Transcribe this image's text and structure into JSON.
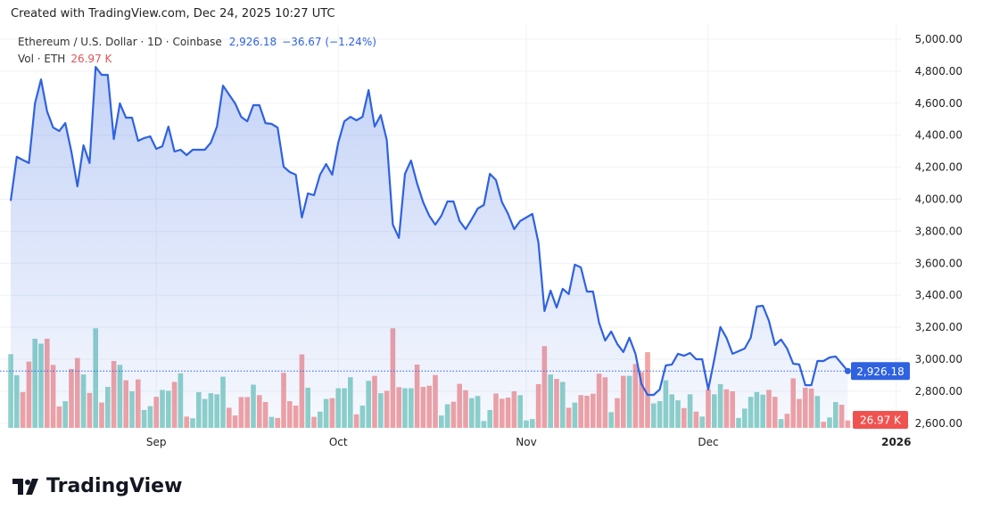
{
  "credit": "Created with TradingView.com, Dec 24, 2025 10:27 UTC",
  "legend": {
    "symbol": "Ethereum / U.S. Dollar · 1D · Coinbase",
    "last_price": "2,926.18",
    "change": "−36.67 (−1.24%)",
    "vol_label": "Vol · ETH",
    "vol_value": "26.97 K"
  },
  "logo_text": "TradingView",
  "colors": {
    "line": "#2f62e0",
    "up_volume": "#8fd3c9",
    "down_volume": "#f4a3a3",
    "last_price_badge": "#2f62e0",
    "volume_badge": "#ef5350"
  },
  "chart_data": {
    "type": "area",
    "interval": "1D",
    "y_axis": {
      "position": "right",
      "ylim": [
        2600,
        5000
      ],
      "ticks": [
        "5,000.00",
        "4,800.00",
        "4,600.00",
        "4,400.00",
        "4,200.00",
        "4,000.00",
        "3,800.00",
        "3,600.00",
        "3,400.00",
        "3,200.00",
        "3,000.00",
        "2,800.00",
        "2,600.00"
      ],
      "tick_values": [
        5000,
        4800,
        4600,
        4400,
        4200,
        4000,
        3800,
        3600,
        3400,
        3200,
        3000,
        2800,
        2600
      ]
    },
    "x_axis": {
      "ticks": [
        {
          "label": "Sep",
          "date": "2025-09-01"
        },
        {
          "label": "Oct",
          "date": "2025-10-01"
        },
        {
          "label": "Nov",
          "date": "2025-11-01"
        },
        {
          "label": "Dec",
          "date": "2025-12-01"
        },
        {
          "label": "2026",
          "date": "2026-01-01"
        }
      ]
    },
    "grid": true,
    "last_price": {
      "value": 2926.18,
      "label": "2,926.18"
    },
    "last_volume": {
      "value": 26.97,
      "label": "26.97 K"
    },
    "volume_unit": "K ETH",
    "months": [
      {
        "month": "2025-08",
        "first_day": 8,
        "bars": [
          [
            3990,
            268,
            "u"
          ],
          [
            4265,
            191,
            "u"
          ],
          [
            4245,
            130,
            "d"
          ],
          [
            4226,
            241,
            "d"
          ],
          [
            4599,
            324,
            "u"
          ],
          [
            4749,
            306,
            "u"
          ],
          [
            4549,
            324,
            "d"
          ],
          [
            4448,
            229,
            "d"
          ],
          [
            4426,
            78,
            "d"
          ],
          [
            4476,
            97,
            "u"
          ],
          [
            4298,
            214,
            "d"
          ],
          [
            4081,
            254,
            "d"
          ],
          [
            4337,
            194,
            "u"
          ],
          [
            4226,
            127,
            "d"
          ],
          [
            4827,
            362,
            "u"
          ],
          [
            4777,
            92,
            "d"
          ],
          [
            4777,
            149,
            "u"
          ],
          [
            4376,
            243,
            "d"
          ],
          [
            4599,
            229,
            "u"
          ],
          [
            4510,
            173,
            "d"
          ],
          [
            4510,
            133,
            "u"
          ],
          [
            4365,
            176,
            "d"
          ],
          [
            4382,
            65,
            "u"
          ],
          [
            4393,
            79,
            "u"
          ]
        ]
      },
      {
        "month": "2025-09",
        "first_day": 1,
        "bars": [
          [
            4315,
            113,
            "d"
          ],
          [
            4331,
            138,
            "u"
          ],
          [
            4454,
            135,
            "u"
          ],
          [
            4298,
            167,
            "d"
          ],
          [
            4309,
            198,
            "u"
          ],
          [
            4276,
            41,
            "d"
          ],
          [
            4309,
            35,
            "u"
          ],
          [
            4309,
            130,
            "u"
          ],
          [
            4309,
            105,
            "u"
          ],
          [
            4354,
            126,
            "u"
          ],
          [
            4454,
            122,
            "u"
          ],
          [
            4710,
            186,
            "u"
          ],
          [
            4654,
            73,
            "d"
          ],
          [
            4599,
            45,
            "d"
          ],
          [
            4515,
            112,
            "d"
          ],
          [
            4487,
            112,
            "d"
          ],
          [
            4588,
            157,
            "u"
          ],
          [
            4588,
            119,
            "d"
          ],
          [
            4476,
            94,
            "d"
          ],
          [
            4471,
            40,
            "u"
          ],
          [
            4448,
            36,
            "d"
          ],
          [
            4203,
            200,
            "d"
          ],
          [
            4170,
            97,
            "d"
          ],
          [
            4153,
            81,
            "d"
          ],
          [
            3886,
            267,
            "d"
          ],
          [
            4036,
            146,
            "u"
          ],
          [
            4025,
            40,
            "d"
          ],
          [
            4153,
            59,
            "u"
          ],
          [
            4220,
            105,
            "u"
          ],
          [
            4153,
            108,
            "d"
          ]
        ]
      },
      {
        "month": "2025-10",
        "first_day": 1,
        "bars": [
          [
            4354,
            144,
            "u"
          ],
          [
            4487,
            144,
            "u"
          ],
          [
            4515,
            184,
            "u"
          ],
          [
            4493,
            49,
            "d"
          ],
          [
            4515,
            81,
            "u"
          ],
          [
            4682,
            171,
            "u"
          ],
          [
            4454,
            189,
            "d"
          ],
          [
            4526,
            126,
            "u"
          ],
          [
            4370,
            135,
            "d"
          ],
          [
            3841,
            362,
            "d"
          ],
          [
            3758,
            148,
            "d"
          ],
          [
            4159,
            144,
            "u"
          ],
          [
            4242,
            144,
            "u"
          ],
          [
            4098,
            230,
            "d"
          ],
          [
            3981,
            149,
            "d"
          ],
          [
            3897,
            153,
            "d"
          ],
          [
            3841,
            192,
            "d"
          ],
          [
            3897,
            45,
            "u"
          ],
          [
            3986,
            86,
            "u"
          ],
          [
            3986,
            95,
            "d"
          ],
          [
            3864,
            160,
            "d"
          ],
          [
            3813,
            137,
            "d"
          ],
          [
            3875,
            108,
            "u"
          ],
          [
            3942,
            116,
            "u"
          ],
          [
            3964,
            25,
            "u"
          ],
          [
            4159,
            65,
            "u"
          ],
          [
            4120,
            125,
            "d"
          ],
          [
            3981,
            106,
            "d"
          ],
          [
            3908,
            110,
            "d"
          ],
          [
            3813,
            133,
            "d"
          ],
          [
            3864,
            119,
            "u"
          ]
        ]
      },
      {
        "month": "2025-11",
        "first_day": 1,
        "bars": [
          [
            3886,
            27,
            "u"
          ],
          [
            3908,
            32,
            "u"
          ],
          [
            3730,
            159,
            "d"
          ],
          [
            3301,
            297,
            "d"
          ],
          [
            3429,
            194,
            "u"
          ],
          [
            3323,
            178,
            "d"
          ],
          [
            3440,
            167,
            "u"
          ],
          [
            3407,
            73,
            "d"
          ],
          [
            3591,
            92,
            "u"
          ],
          [
            3574,
            119,
            "d"
          ],
          [
            3423,
            117,
            "d"
          ],
          [
            3423,
            124,
            "d"
          ],
          [
            3228,
            197,
            "d"
          ],
          [
            3117,
            184,
            "d"
          ],
          [
            3173,
            57,
            "u"
          ],
          [
            3095,
            108,
            "d"
          ],
          [
            3045,
            189,
            "d"
          ],
          [
            3134,
            189,
            "u"
          ],
          [
            3034,
            232,
            "d"
          ],
          [
            2844,
            203,
            "d"
          ],
          [
            2777,
            275,
            "d"
          ],
          [
            2777,
            89,
            "u"
          ],
          [
            2811,
            97,
            "u"
          ],
          [
            2961,
            173,
            "u"
          ],
          [
            2967,
            122,
            "u"
          ],
          [
            3034,
            100,
            "u"
          ],
          [
            3022,
            72,
            "d"
          ],
          [
            3039,
            122,
            "u"
          ],
          [
            3000,
            59,
            "d"
          ],
          [
            3000,
            41,
            "u"
          ]
        ]
      },
      {
        "month": "2025-12",
        "first_day": 1,
        "bars": [
          [
            2811,
            140,
            "d"
          ],
          [
            3000,
            122,
            "u"
          ],
          [
            3201,
            159,
            "u"
          ],
          [
            3134,
            140,
            "d"
          ],
          [
            3034,
            133,
            "d"
          ],
          [
            3050,
            36,
            "u"
          ],
          [
            3067,
            70,
            "u"
          ],
          [
            3134,
            113,
            "u"
          ],
          [
            3329,
            130,
            "u"
          ],
          [
            3334,
            121,
            "u"
          ],
          [
            3240,
            138,
            "d"
          ],
          [
            3089,
            113,
            "d"
          ],
          [
            3123,
            32,
            "u"
          ],
          [
            3067,
            51,
            "d"
          ],
          [
            2972,
            180,
            "d"
          ],
          [
            2967,
            105,
            "d"
          ],
          [
            2838,
            146,
            "d"
          ],
          [
            2838,
            143,
            "d"
          ],
          [
            2989,
            116,
            "u"
          ],
          [
            2989,
            22,
            "d"
          ],
          [
            3011,
            38,
            "u"
          ],
          [
            3017,
            94,
            "u"
          ],
          [
            2972,
            84,
            "d"
          ],
          [
            2926.18,
            26.97,
            "d"
          ]
        ]
      }
    ]
  }
}
